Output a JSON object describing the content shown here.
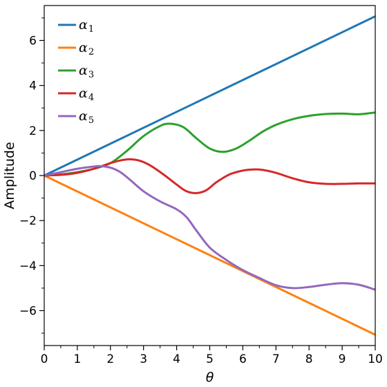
{
  "chart_data": {
    "type": "line",
    "xlabel": "θ",
    "ylabel": "Amplitude",
    "xlim": [
      0,
      10
    ],
    "ylim": [
      -7.55,
      7.55
    ],
    "xticks": [
      0,
      1,
      2,
      3,
      4,
      5,
      6,
      7,
      8,
      9,
      10
    ],
    "xtick_labels": [
      "0",
      "1",
      "2",
      "3",
      "4",
      "5",
      "6",
      "7",
      "8",
      "9",
      "10"
    ],
    "yticks": [
      -6,
      -4,
      -2,
      0,
      2,
      4,
      6
    ],
    "ytick_labels": [
      "−6",
      "−4",
      "−2",
      "0",
      "2",
      "4",
      "6"
    ],
    "grid": false,
    "legend": "top-left",
    "series": [
      {
        "name": "α1",
        "label_base": "α",
        "label_sub": "1",
        "color": "#1f77b4",
        "x": [
          0,
          10
        ],
        "y": [
          0,
          7.07
        ]
      },
      {
        "name": "α2",
        "label_base": "α",
        "label_sub": "2",
        "color": "#ff7f0e",
        "x": [
          0,
          10
        ],
        "y": [
          0,
          -7.07
        ]
      },
      {
        "name": "α3",
        "label_base": "α",
        "label_sub": "3",
        "color": "#2ca02c",
        "x": [
          0,
          0.5,
          1.0,
          1.5,
          2.0,
          2.5,
          3.0,
          3.5,
          3.8,
          4.2,
          4.6,
          5.0,
          5.4,
          5.8,
          6.2,
          6.6,
          7.0,
          7.5,
          8.0,
          8.5,
          9.0,
          9.5,
          10.0
        ],
        "y": [
          0,
          0.05,
          0.15,
          0.3,
          0.55,
          1.1,
          1.75,
          2.2,
          2.3,
          2.15,
          1.65,
          1.2,
          1.05,
          1.2,
          1.55,
          1.95,
          2.25,
          2.5,
          2.65,
          2.73,
          2.75,
          2.72,
          2.8
        ]
      },
      {
        "name": "α4",
        "label_base": "α",
        "label_sub": "4",
        "color": "#d62728",
        "x": [
          0,
          0.5,
          1.0,
          1.5,
          2.0,
          2.3,
          2.6,
          2.9,
          3.2,
          3.6,
          4.0,
          4.3,
          4.6,
          4.9,
          5.2,
          5.6,
          6.0,
          6.3,
          6.6,
          7.0,
          7.5,
          8.0,
          8.5,
          9.0,
          9.5,
          10.0
        ],
        "y": [
          0,
          0.03,
          0.12,
          0.3,
          0.55,
          0.67,
          0.72,
          0.65,
          0.45,
          0.05,
          -0.4,
          -0.7,
          -0.78,
          -0.65,
          -0.3,
          0.05,
          0.22,
          0.27,
          0.25,
          0.12,
          -0.12,
          -0.3,
          -0.37,
          -0.37,
          -0.35,
          -0.35
        ]
      },
      {
        "name": "α5",
        "label_base": "α",
        "label_sub": "5",
        "color": "#9467bd",
        "x": [
          0,
          0.5,
          1.0,
          1.5,
          1.7,
          2.0,
          2.3,
          2.6,
          3.0,
          3.5,
          4.0,
          4.3,
          4.6,
          5.0,
          5.5,
          6.0,
          6.5,
          7.0,
          7.5,
          8.0,
          8.5,
          9.0,
          9.5,
          10.0
        ],
        "y": [
          0,
          0.15,
          0.3,
          0.4,
          0.42,
          0.35,
          0.15,
          -0.2,
          -0.7,
          -1.15,
          -1.5,
          -1.85,
          -2.45,
          -3.2,
          -3.75,
          -4.2,
          -4.55,
          -4.87,
          -5.0,
          -4.95,
          -4.85,
          -4.78,
          -4.85,
          -5.07
        ]
      }
    ]
  }
}
